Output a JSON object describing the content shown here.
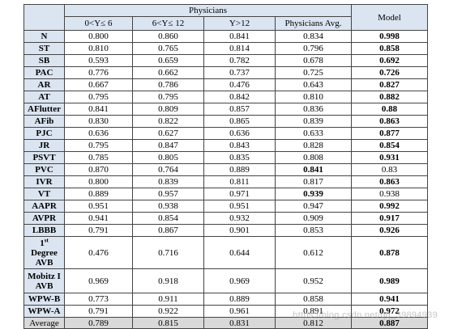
{
  "header": {
    "group": "Physicians",
    "model": "Model",
    "columns": [
      "0<Y≤ 6",
      "6<Y≤ 12",
      "Y>12",
      "Physicians  Avg."
    ]
  },
  "rows": [
    {
      "label": "N",
      "values": [
        "0.800",
        "0.860",
        "0.841",
        "0.834",
        "0.998"
      ],
      "bold": [
        false,
        false,
        false,
        false,
        true
      ]
    },
    {
      "label": "ST",
      "values": [
        "0.810",
        "0.765",
        "0.814",
        "0.796",
        "0.858"
      ],
      "bold": [
        false,
        false,
        false,
        false,
        true
      ]
    },
    {
      "label": "SB",
      "values": [
        "0.593",
        "0.659",
        "0.782",
        "0.678",
        "0.692"
      ],
      "bold": [
        false,
        false,
        false,
        false,
        true
      ]
    },
    {
      "label": "PAC",
      "values": [
        "0.776",
        "0.662",
        "0.737",
        "0.725",
        "0.726"
      ],
      "bold": [
        false,
        false,
        false,
        false,
        true
      ]
    },
    {
      "label": "AR",
      "values": [
        "0.667",
        "0.786",
        "0.476",
        "0.643",
        "0.827"
      ],
      "bold": [
        false,
        false,
        false,
        false,
        true
      ]
    },
    {
      "label": "AT",
      "values": [
        "0.795",
        "0.795",
        "0.842",
        "0.810",
        "0.882"
      ],
      "bold": [
        false,
        false,
        false,
        false,
        true
      ]
    },
    {
      "label": "AFlutter",
      "values": [
        "0.841",
        "0.809",
        "0.857",
        "0.836",
        "0.88"
      ],
      "bold": [
        false,
        false,
        false,
        false,
        true
      ]
    },
    {
      "label": "AFib",
      "values": [
        "0.830",
        "0.822",
        "0.865",
        "0.839",
        "0.863"
      ],
      "bold": [
        false,
        false,
        false,
        false,
        true
      ]
    },
    {
      "label": "PJC",
      "values": [
        "0.636",
        "0.627",
        "0.636",
        "0.633",
        "0.877"
      ],
      "bold": [
        false,
        false,
        false,
        false,
        true
      ]
    },
    {
      "label": "JR",
      "values": [
        "0.795",
        "0.847",
        "0.843",
        "0.828",
        "0.854"
      ],
      "bold": [
        false,
        false,
        false,
        false,
        true
      ]
    },
    {
      "label": "PSVT",
      "values": [
        "0.785",
        "0.805",
        "0.835",
        "0.808",
        "0.931"
      ],
      "bold": [
        false,
        false,
        false,
        false,
        true
      ]
    },
    {
      "label": "PVC",
      "values": [
        "0.870",
        "0.764",
        "0.889",
        "0.841",
        "0.83"
      ],
      "bold": [
        false,
        false,
        false,
        true,
        false
      ]
    },
    {
      "label": "IVR",
      "values": [
        "0.800",
        "0.839",
        "0.811",
        "0.817",
        "0.863"
      ],
      "bold": [
        false,
        false,
        false,
        false,
        true
      ]
    },
    {
      "label": "VT",
      "values": [
        "0.889",
        "0.957",
        "0.971",
        "0.939",
        "0.938"
      ],
      "bold": [
        false,
        false,
        false,
        true,
        false
      ]
    },
    {
      "label": "AAPR",
      "values": [
        "0.951",
        "0.938",
        "0.951",
        "0.947",
        "0.992"
      ],
      "bold": [
        false,
        false,
        false,
        false,
        true
      ]
    },
    {
      "label": "AVPR",
      "values": [
        "0.941",
        "0.854",
        "0.932",
        "0.909",
        "0.917"
      ],
      "bold": [
        false,
        false,
        false,
        false,
        true
      ]
    },
    {
      "label": "LBBB",
      "values": [
        "0.791",
        "0.867",
        "0.901",
        "0.853",
        "0.926"
      ],
      "bold": [
        false,
        false,
        false,
        false,
        true
      ]
    },
    {
      "label_lines": [
        "1",
        "st",
        "Degree",
        "AVB"
      ],
      "values": [
        "0.476",
        "0.716",
        "0.644",
        "0.612",
        "0.878"
      ],
      "bold": [
        false,
        false,
        false,
        false,
        true
      ]
    },
    {
      "label_lines": [
        "Mobitz I",
        "AVB"
      ],
      "values": [
        "0.969",
        "0.918",
        "0.969",
        "0.952",
        "0.989"
      ],
      "bold": [
        false,
        false,
        false,
        false,
        true
      ]
    },
    {
      "label": "WPW-B",
      "values": [
        "0.773",
        "0.911",
        "0.889",
        "0.858",
        "0.941"
      ],
      "bold": [
        false,
        false,
        false,
        false,
        true
      ]
    },
    {
      "label": "WPW-A",
      "values": [
        "0.791",
        "0.922",
        "0.961",
        "0.891",
        "0.972"
      ],
      "bold": [
        false,
        false,
        false,
        false,
        true
      ]
    }
  ],
  "average": {
    "label": "Average",
    "values": [
      "0.789",
      "0.815",
      "0.831",
      "0.812",
      "0.887"
    ]
  },
  "watermark": "https://blog.csdn.net/qq_39894939"
}
